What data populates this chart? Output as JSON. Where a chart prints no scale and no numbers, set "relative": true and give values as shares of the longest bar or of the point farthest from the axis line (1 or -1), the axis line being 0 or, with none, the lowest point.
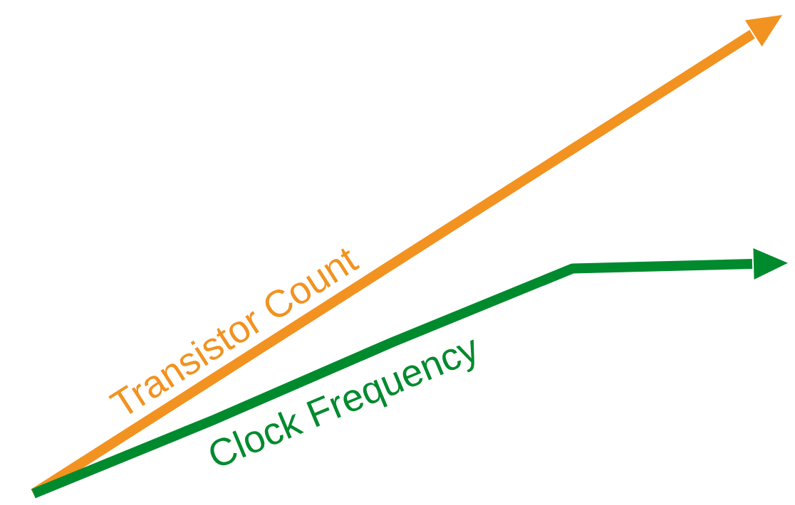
{
  "chart_data": {
    "type": "line",
    "relative": true,
    "categories": [
      null,
      null,
      null,
      null,
      null
    ],
    "series": [
      {
        "name": "Transistor Count",
        "color": "#f29220",
        "values": [
          0,
          0.25,
          0.5,
          0.75,
          1
        ]
      },
      {
        "name": "Clock Frequency",
        "color": "#008a2e",
        "values": [
          0,
          0.16,
          0.33,
          0.49,
          0.5
        ]
      }
    ]
  }
}
